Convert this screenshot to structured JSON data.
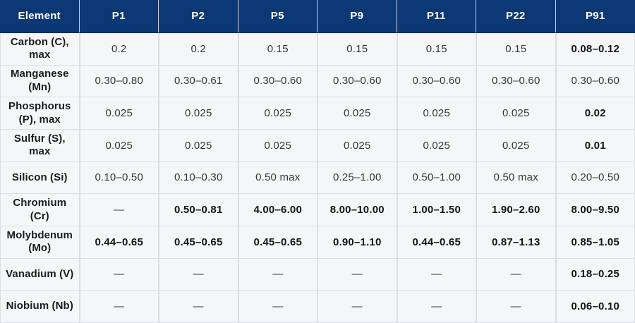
{
  "chart_data": {
    "type": "table",
    "columns": [
      "Element",
      "P1",
      "P2",
      "P5",
      "P9",
      "P11",
      "P22",
      "P91"
    ],
    "rows": [
      {
        "element": "Carbon (C), max",
        "values": [
          "0.2",
          "0.2",
          "0.15",
          "0.15",
          "0.15",
          "0.15",
          "0.08–0.12"
        ],
        "bold": [
          false,
          false,
          false,
          false,
          false,
          false,
          true
        ]
      },
      {
        "element": "Manganese (Mn)",
        "values": [
          "0.30–0.80",
          "0.30–0.61",
          "0.30–0.60",
          "0.30–0.60",
          "0.30–0.60",
          "0.30–0.60",
          "0.30–0.60"
        ],
        "bold": [
          false,
          false,
          false,
          false,
          false,
          false,
          false
        ]
      },
      {
        "element": "Phosphorus (P), max",
        "values": [
          "0.025",
          "0.025",
          "0.025",
          "0.025",
          "0.025",
          "0.025",
          "0.02"
        ],
        "bold": [
          false,
          false,
          false,
          false,
          false,
          false,
          true
        ]
      },
      {
        "element": "Sulfur (S), max",
        "values": [
          "0.025",
          "0.025",
          "0.025",
          "0.025",
          "0.025",
          "0.025",
          "0.01"
        ],
        "bold": [
          false,
          false,
          false,
          false,
          false,
          false,
          true
        ]
      },
      {
        "element": "Silicon (Si)",
        "values": [
          "0.10–0.50",
          "0.10–0.30",
          "0.50 max",
          "0.25–1.00",
          "0.50–1.00",
          "0.50 max",
          "0.20–0.50"
        ],
        "bold": [
          false,
          false,
          false,
          false,
          false,
          false,
          false
        ]
      },
      {
        "element": "Chromium (Cr)",
        "values": [
          "—",
          "0.50–0.81",
          "4.00–6.00",
          "8.00–10.00",
          "1.00–1.50",
          "1.90–2.60",
          "8.00–9.50"
        ],
        "bold": [
          false,
          true,
          true,
          true,
          true,
          true,
          true
        ]
      },
      {
        "element": "Molybdenum (Mo)",
        "values": [
          "0.44–0.65",
          "0.45–0.65",
          "0.45–0.65",
          "0.90–1.10",
          "0.44–0.65",
          "0.87–1.13",
          "0.85–1.05"
        ],
        "bold": [
          true,
          true,
          true,
          true,
          true,
          true,
          true
        ]
      },
      {
        "element": "Vanadium (V)",
        "values": [
          "—",
          "—",
          "—",
          "—",
          "—",
          "—",
          "0.18–0.25"
        ],
        "bold": [
          false,
          false,
          false,
          false,
          false,
          false,
          true
        ]
      },
      {
        "element": "Niobium (Nb)",
        "values": [
          "—",
          "—",
          "—",
          "—",
          "—",
          "—",
          "0.06–0.10"
        ],
        "bold": [
          false,
          false,
          false,
          false,
          false,
          false,
          true
        ]
      }
    ]
  },
  "colors": {
    "header_bg": "#0d3876",
    "header_text": "#ffffff",
    "header_sep": "#c9cfd8",
    "header_border": "#0a2b5c",
    "cell_bg": "#f5f6f8",
    "border": "#dcdfe2",
    "label_text": "#1b1c1e",
    "value_text": "#333639",
    "bold_text": "#141414"
  }
}
